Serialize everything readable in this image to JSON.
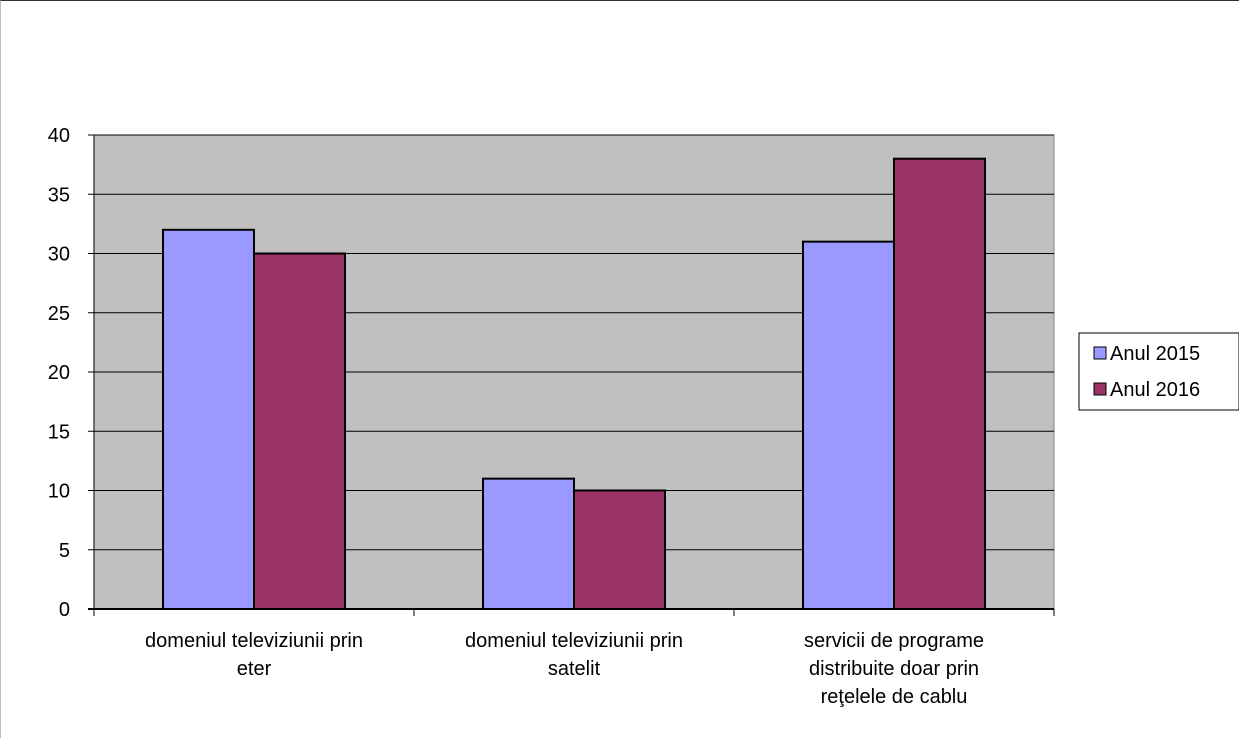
{
  "chart_data": {
    "type": "bar",
    "title": "",
    "xlabel": "",
    "ylabel": "",
    "categories": [
      [
        "domeniul televiziunii prin",
        "eter"
      ],
      [
        "domeniul televiziunii prin",
        "satelit"
      ],
      [
        "servicii de programe",
        "distribuite doar prin",
        "reţelele de cablu"
      ]
    ],
    "series": [
      {
        "name": "Anul 2015",
        "values": [
          32,
          11,
          31
        ],
        "color": "#9999ff"
      },
      {
        "name": "Anul 2016",
        "values": [
          30,
          10,
          38
        ],
        "color": "#993366"
      }
    ],
    "ylim": [
      0,
      40
    ],
    "yticks": [
      0,
      5,
      10,
      15,
      20,
      25,
      30,
      35,
      40
    ],
    "grid": true,
    "plot_background": "#c0c0c0",
    "legend_position": "right"
  }
}
